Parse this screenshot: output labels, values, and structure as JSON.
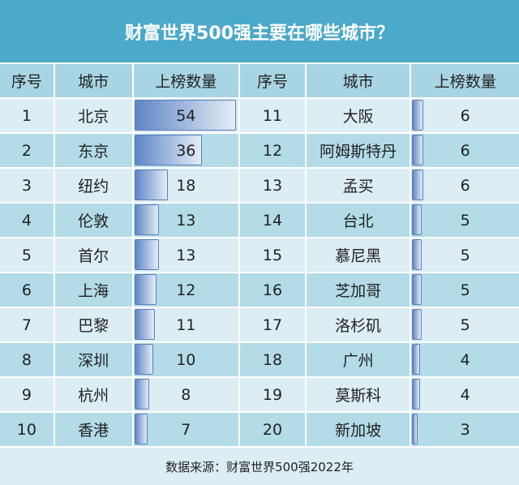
{
  "title": "财富世界500强主要在哪些城市？",
  "headers": [
    "序号",
    "城市",
    "上榜数量",
    "序号",
    "城市",
    "上榜数量"
  ],
  "footer": "数据来源：财富世界500强2022年",
  "colors": {
    "title_bg": "#4ba9c9",
    "bar_start": "#5f86c6",
    "bar_end": "#e4ecf6",
    "row_light": "#dcedf4",
    "row_dark": "#b3dbe8"
  },
  "chart_data": {
    "type": "table",
    "title": "财富世界500强主要在哪些城市？",
    "columns": [
      "序号",
      "城市",
      "上榜数量"
    ],
    "rows": [
      {
        "rank": 1,
        "city": "北京",
        "count": 54
      },
      {
        "rank": 2,
        "city": "东京",
        "count": 36
      },
      {
        "rank": 3,
        "city": "纽约",
        "count": 18
      },
      {
        "rank": 4,
        "city": "伦敦",
        "count": 13
      },
      {
        "rank": 5,
        "city": "首尔",
        "count": 13
      },
      {
        "rank": 6,
        "city": "上海",
        "count": 12
      },
      {
        "rank": 7,
        "city": "巴黎",
        "count": 11
      },
      {
        "rank": 8,
        "city": "深圳",
        "count": 10
      },
      {
        "rank": 9,
        "city": "杭州",
        "count": 8
      },
      {
        "rank": 10,
        "city": "香港",
        "count": 7
      },
      {
        "rank": 11,
        "city": "大阪",
        "count": 6
      },
      {
        "rank": 12,
        "city": "阿姆斯特丹",
        "count": 6
      },
      {
        "rank": 13,
        "city": "孟买",
        "count": 6
      },
      {
        "rank": 14,
        "city": "台北",
        "count": 5
      },
      {
        "rank": 15,
        "city": "慕尼黑",
        "count": 5
      },
      {
        "rank": 16,
        "city": "芝加哥",
        "count": 5
      },
      {
        "rank": 17,
        "city": "洛杉矶",
        "count": 5
      },
      {
        "rank": 18,
        "city": "广州",
        "count": 4
      },
      {
        "rank": 19,
        "city": "莫斯科",
        "count": 4
      },
      {
        "rank": 20,
        "city": "新加坡",
        "count": 3
      }
    ],
    "data_bars": true,
    "bar_max": 54
  }
}
